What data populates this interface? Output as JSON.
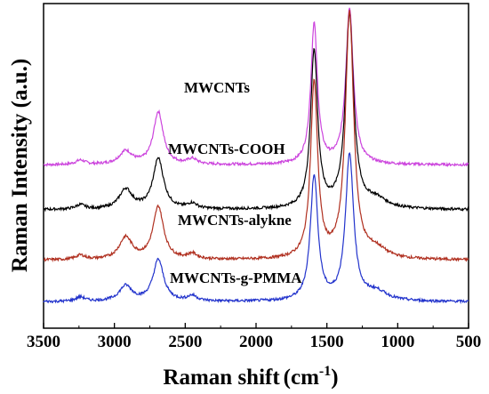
{
  "chart_data": {
    "type": "line",
    "title": "",
    "xlabel": "Raman shift",
    "xlabel_unit_base": "cm",
    "xlabel_unit_sup": "-1",
    "ylabel": "Raman Intensity (a.u.)",
    "xlim": [
      3500,
      500
    ],
    "x_ticks": [
      "3500",
      "3000",
      "2500",
      "2000",
      "1500",
      "1000",
      "500"
    ],
    "grid": false,
    "series": [
      {
        "name": "MWCNTs",
        "color": "#cc44dd",
        "baseline": 0.82,
        "peaks": [
          {
            "x": 3240,
            "h": 0.1,
            "w": 40
          },
          {
            "x": 2920,
            "h": 0.3,
            "w": 55
          },
          {
            "x": 2690,
            "h": 1.2,
            "w": 42
          },
          {
            "x": 2450,
            "h": 0.12,
            "w": 40
          },
          {
            "x": 1590,
            "h": 3.2,
            "w": 28
          },
          {
            "x": 1340,
            "h": 3.55,
            "w": 32
          }
        ],
        "values": [
          [
            3500,
            0.82
          ],
          [
            2920,
            1.05
          ],
          [
            2690,
            1.95
          ],
          [
            1590,
            3.95
          ],
          [
            1340,
            4.35
          ],
          [
            500,
            0.82
          ]
        ]
      },
      {
        "name": "MWCNTs-COOH",
        "color": "#000000",
        "baseline": -0.2,
        "peaks": [
          {
            "x": 3240,
            "h": 0.1,
            "w": 40
          },
          {
            "x": 2920,
            "h": 0.45,
            "w": 55
          },
          {
            "x": 2690,
            "h": 1.15,
            "w": 45
          },
          {
            "x": 2450,
            "h": 0.12,
            "w": 40
          },
          {
            "x": 1590,
            "h": 3.6,
            "w": 30
          },
          {
            "x": 1340,
            "h": 4.4,
            "w": 35
          },
          {
            "x": 1150,
            "h": 0.2,
            "w": 90
          }
        ],
        "values": [
          [
            3500,
            -0.2
          ],
          [
            2920,
            0.15
          ],
          [
            2690,
            0.95
          ],
          [
            1590,
            3.3
          ],
          [
            1340,
            4.1
          ],
          [
            500,
            -0.2
          ]
        ]
      },
      {
        "name": "MWCNTs-alykne",
        "color": "#b03020",
        "baseline": -1.35,
        "peaks": [
          {
            "x": 3240,
            "h": 0.1,
            "w": 40
          },
          {
            "x": 2920,
            "h": 0.5,
            "w": 55
          },
          {
            "x": 2690,
            "h": 1.2,
            "w": 45
          },
          {
            "x": 2450,
            "h": 0.12,
            "w": 40
          },
          {
            "x": 1590,
            "h": 4.0,
            "w": 30
          },
          {
            "x": 1340,
            "h": 5.6,
            "w": 35
          },
          {
            "x": 1150,
            "h": 0.2,
            "w": 90
          }
        ],
        "values": [
          [
            3500,
            -1.35
          ],
          [
            2920,
            -0.85
          ],
          [
            2690,
            -0.15
          ],
          [
            1590,
            2.6
          ],
          [
            1340,
            4.2
          ],
          [
            500,
            -1.35
          ]
        ]
      },
      {
        "name": "MWCNTs-g-PMMA",
        "color": "#2233cc",
        "baseline": -2.3,
        "peaks": [
          {
            "x": 3240,
            "h": 0.1,
            "w": 40
          },
          {
            "x": 2920,
            "h": 0.35,
            "w": 55
          },
          {
            "x": 2690,
            "h": 0.95,
            "w": 45
          },
          {
            "x": 2450,
            "h": 0.12,
            "w": 40
          },
          {
            "x": 1590,
            "h": 2.85,
            "w": 32
          },
          {
            "x": 1340,
            "h": 3.3,
            "w": 35
          },
          {
            "x": 1150,
            "h": 0.2,
            "w": 90
          }
        ],
        "values": [
          [
            3500,
            -2.3
          ],
          [
            2920,
            -1.95
          ],
          [
            2690,
            -1.35
          ],
          [
            1590,
            0.55
          ],
          [
            1340,
            1.0
          ],
          [
            500,
            -2.3
          ]
        ]
      }
    ],
    "ylim": [
      -2.9,
      4.5
    ]
  }
}
